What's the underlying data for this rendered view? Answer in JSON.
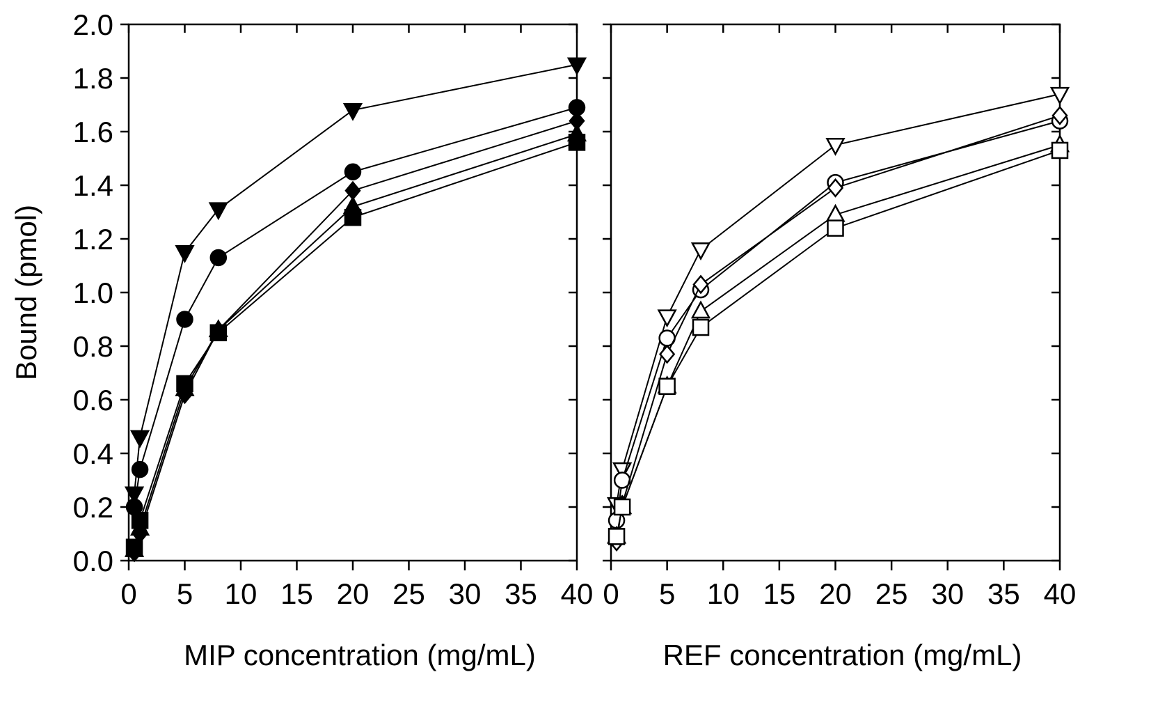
{
  "chart_data": [
    {
      "type": "line",
      "xlabel": "MIP concentration (mg/mL)",
      "ylabel": "Bound (pmol)",
      "xlim": [
        0,
        40
      ],
      "ylim": [
        0,
        2.0
      ],
      "xticks": [
        "0",
        "5",
        "10",
        "15",
        "20",
        "25",
        "30",
        "35",
        "40"
      ],
      "yticks": [
        "0.0",
        "0.2",
        "0.4",
        "0.6",
        "0.8",
        "1.0",
        "1.2",
        "1.4",
        "1.6",
        "1.8",
        "2.0"
      ],
      "grid": false,
      "legend": "none",
      "series": [
        {
          "marker": "triangle-down",
          "filled": true,
          "x": [
            0.5,
            1,
            5,
            8,
            20,
            40
          ],
          "y": [
            0.25,
            0.46,
            1.15,
            1.31,
            1.68,
            1.85
          ]
        },
        {
          "marker": "circle",
          "filled": true,
          "x": [
            0.5,
            1,
            5,
            8,
            20,
            40
          ],
          "y": [
            0.2,
            0.34,
            0.9,
            1.13,
            1.45,
            1.69
          ]
        },
        {
          "marker": "diamond",
          "filled": true,
          "x": [
            0.5,
            1,
            5,
            8,
            20,
            40
          ],
          "y": [
            0.03,
            0.1,
            0.62,
            0.86,
            1.38,
            1.64
          ]
        },
        {
          "marker": "triangle-up",
          "filled": true,
          "x": [
            0.5,
            1,
            5,
            8,
            20,
            40
          ],
          "y": [
            0.04,
            0.12,
            0.64,
            0.86,
            1.32,
            1.59
          ]
        },
        {
          "marker": "square",
          "filled": true,
          "x": [
            0.5,
            1,
            5,
            8,
            20,
            40
          ],
          "y": [
            0.05,
            0.15,
            0.66,
            0.85,
            1.28,
            1.56
          ]
        }
      ]
    },
    {
      "type": "line",
      "xlabel": "REF concentration (mg/mL)",
      "ylabel": "",
      "xlim": [
        0,
        40
      ],
      "ylim": [
        0,
        2.0
      ],
      "xticks": [
        "0",
        "5",
        "10",
        "15",
        "20",
        "25",
        "30",
        "35",
        "40"
      ],
      "yticks": [],
      "grid": false,
      "legend": "none",
      "series": [
        {
          "marker": "triangle-down",
          "filled": false,
          "x": [
            0.5,
            1,
            5,
            8,
            20,
            40
          ],
          "y": [
            0.21,
            0.34,
            0.91,
            1.16,
            1.55,
            1.74
          ]
        },
        {
          "marker": "circle",
          "filled": false,
          "x": [
            0.5,
            1,
            5,
            8,
            20,
            40
          ],
          "y": [
            0.15,
            0.3,
            0.83,
            1.01,
            1.41,
            1.64
          ]
        },
        {
          "marker": "diamond",
          "filled": false,
          "x": [
            0.5,
            1,
            5,
            8,
            20,
            40
          ],
          "y": [
            0.07,
            0.21,
            0.77,
            1.03,
            1.39,
            1.66
          ]
        },
        {
          "marker": "triangle-up",
          "filled": false,
          "x": [
            0.5,
            1,
            5,
            8,
            20,
            40
          ],
          "y": [
            0.09,
            0.2,
            0.65,
            0.93,
            1.29,
            1.55
          ]
        },
        {
          "marker": "square",
          "filled": false,
          "x": [
            0.5,
            1,
            5,
            8,
            20,
            40
          ],
          "y": [
            0.09,
            0.2,
            0.65,
            0.87,
            1.24,
            1.53
          ]
        }
      ]
    }
  ]
}
